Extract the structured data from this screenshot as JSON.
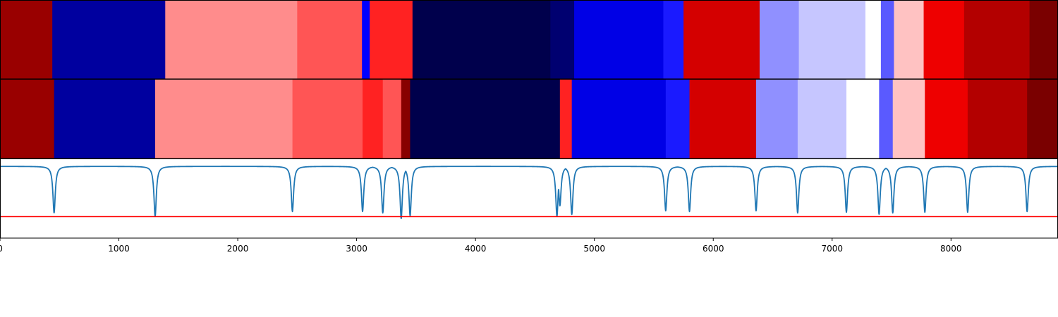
{
  "chart_data": {
    "type": "heatmap",
    "title": "",
    "xlabel": "",
    "ylabel": "",
    "xlim": [
      0,
      8900
    ],
    "grid": false,
    "legend": "none",
    "x_ticks": [
      0,
      1000,
      2000,
      3000,
      4000,
      5000,
      6000,
      7000,
      8000
    ],
    "x_tick_labels": [
      "0",
      "1000",
      "2000",
      "3000",
      "4000",
      "5000",
      "6000",
      "7000",
      "8000"
    ],
    "rows": [
      {
        "segments": [
          {
            "start": 0,
            "end": 440,
            "color": "#990000"
          },
          {
            "start": 440,
            "end": 1390,
            "color": "#00009f"
          },
          {
            "start": 1390,
            "end": 2500,
            "color": "#ff8c8c"
          },
          {
            "start": 2500,
            "end": 3045,
            "color": "#ff5555"
          },
          {
            "start": 3045,
            "end": 3110,
            "color": "#0000ff"
          },
          {
            "start": 3110,
            "end": 3470,
            "color": "#ff2222"
          },
          {
            "start": 3470,
            "end": 4630,
            "color": "#00004c"
          },
          {
            "start": 4630,
            "end": 4830,
            "color": "#000070"
          },
          {
            "start": 4830,
            "end": 5580,
            "color": "#0000e6"
          },
          {
            "start": 5580,
            "end": 5750,
            "color": "#1a1aff"
          },
          {
            "start": 5750,
            "end": 6390,
            "color": "#d40000"
          },
          {
            "start": 6390,
            "end": 6720,
            "color": "#9090ff"
          },
          {
            "start": 6720,
            "end": 7280,
            "color": "#c6c6ff"
          },
          {
            "start": 7280,
            "end": 7410,
            "color": "#ffffff"
          },
          {
            "start": 7410,
            "end": 7520,
            "color": "#5a5aff"
          },
          {
            "start": 7520,
            "end": 7770,
            "color": "#ffc2c2"
          },
          {
            "start": 7770,
            "end": 8110,
            "color": "#ee0000"
          },
          {
            "start": 8110,
            "end": 8660,
            "color": "#b30000"
          },
          {
            "start": 8660,
            "end": 8900,
            "color": "#7a0000"
          }
        ]
      },
      {
        "segments": [
          {
            "start": 0,
            "end": 455,
            "color": "#990000"
          },
          {
            "start": 455,
            "end": 1305,
            "color": "#00009f"
          },
          {
            "start": 1305,
            "end": 2460,
            "color": "#ff8c8c"
          },
          {
            "start": 2460,
            "end": 3050,
            "color": "#ff5555"
          },
          {
            "start": 3050,
            "end": 3220,
            "color": "#ff2222"
          },
          {
            "start": 3220,
            "end": 3375,
            "color": "#ff5555"
          },
          {
            "start": 3375,
            "end": 3450,
            "color": "#880000"
          },
          {
            "start": 3450,
            "end": 4710,
            "color": "#00004c"
          },
          {
            "start": 4710,
            "end": 4810,
            "color": "#ff2222"
          },
          {
            "start": 4810,
            "end": 5600,
            "color": "#0000e6"
          },
          {
            "start": 5600,
            "end": 5800,
            "color": "#1a1aff"
          },
          {
            "start": 5800,
            "end": 6360,
            "color": "#d40000"
          },
          {
            "start": 6360,
            "end": 6710,
            "color": "#9090ff"
          },
          {
            "start": 6710,
            "end": 7120,
            "color": "#c6c6ff"
          },
          {
            "start": 7120,
            "end": 7395,
            "color": "#ffffff"
          },
          {
            "start": 7395,
            "end": 7510,
            "color": "#5a5aff"
          },
          {
            "start": 7510,
            "end": 7780,
            "color": "#ffc2c2"
          },
          {
            "start": 7780,
            "end": 8140,
            "color": "#ee0000"
          },
          {
            "start": 8140,
            "end": 8640,
            "color": "#b30000"
          },
          {
            "start": 8640,
            "end": 8900,
            "color": "#7a0000"
          }
        ]
      }
    ],
    "line_panel": {
      "ylim": [
        -0.1,
        1.0
      ],
      "series": [
        {
          "color": "#1f77b4",
          "baseline": 0.9,
          "dip_width": 12,
          "dips": [
            {
              "x": 455,
              "y": 0.25
            },
            {
              "x": 1305,
              "y": 0.2
            },
            {
              "x": 2460,
              "y": 0.27
            },
            {
              "x": 3050,
              "y": 0.27
            },
            {
              "x": 3220,
              "y": 0.25
            },
            {
              "x": 3375,
              "y": 0.17
            },
            {
              "x": 3450,
              "y": 0.21
            },
            {
              "x": 4685,
              "y": 0.2
            },
            {
              "x": 4710,
              "y": 0.35
            },
            {
              "x": 4810,
              "y": 0.23
            },
            {
              "x": 5600,
              "y": 0.28
            },
            {
              "x": 5800,
              "y": 0.27
            },
            {
              "x": 6360,
              "y": 0.28
            },
            {
              "x": 6710,
              "y": 0.25
            },
            {
              "x": 7120,
              "y": 0.26
            },
            {
              "x": 7395,
              "y": 0.23
            },
            {
              "x": 7510,
              "y": 0.25
            },
            {
              "x": 7780,
              "y": 0.26
            },
            {
              "x": 8140,
              "y": 0.26
            },
            {
              "x": 8640,
              "y": 0.27
            }
          ]
        },
        {
          "color": "#ff0000",
          "constant": 0.2
        }
      ]
    }
  }
}
